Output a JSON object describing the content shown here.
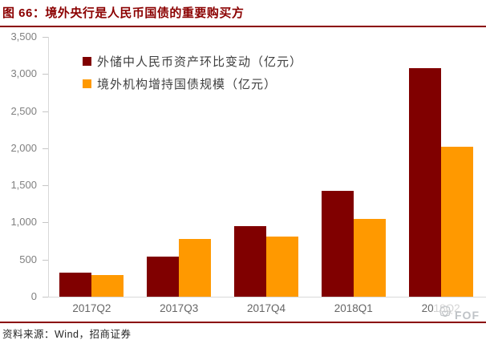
{
  "title": "图 66：境外央行是人民币国债的重要购买方",
  "footer": {
    "source": "资料来源：Wind，招商证券"
  },
  "watermark": {
    "label": "FOF",
    "icon": "flower-logo"
  },
  "colors": {
    "title_red": "#8B0000",
    "series1": "#800000",
    "series2": "#FF9900",
    "axis_gray": "#d9d9d9",
    "ylabel_gray": "#808080",
    "xlabel_gray": "#666666",
    "watermark_gray": "#bfc3c7"
  },
  "chart_data": {
    "type": "bar",
    "title": "境外央行是人民币国债的重要购买方",
    "categories": [
      "2017Q2",
      "2017Q3",
      "2017Q4",
      "2018Q1",
      "2018Q2"
    ],
    "series": [
      {
        "name": "外储中人民币资产环比变动（亿元）",
        "color": "#800000",
        "values": [
          320,
          540,
          950,
          1425,
          3080
        ]
      },
      {
        "name": "境外机构增持国债规模（亿元）",
        "color": "#FF9900",
        "values": [
          290,
          775,
          805,
          1050,
          2020
        ]
      }
    ],
    "xlabel": "",
    "ylabel": "",
    "ylim": [
      0,
      3500
    ],
    "ytick_step": 500,
    "yticks": [
      "0",
      "500",
      "1,000",
      "1,500",
      "2,000",
      "2,500",
      "3,000",
      "3,500"
    ],
    "grid": false,
    "legend_position": "top-left"
  }
}
